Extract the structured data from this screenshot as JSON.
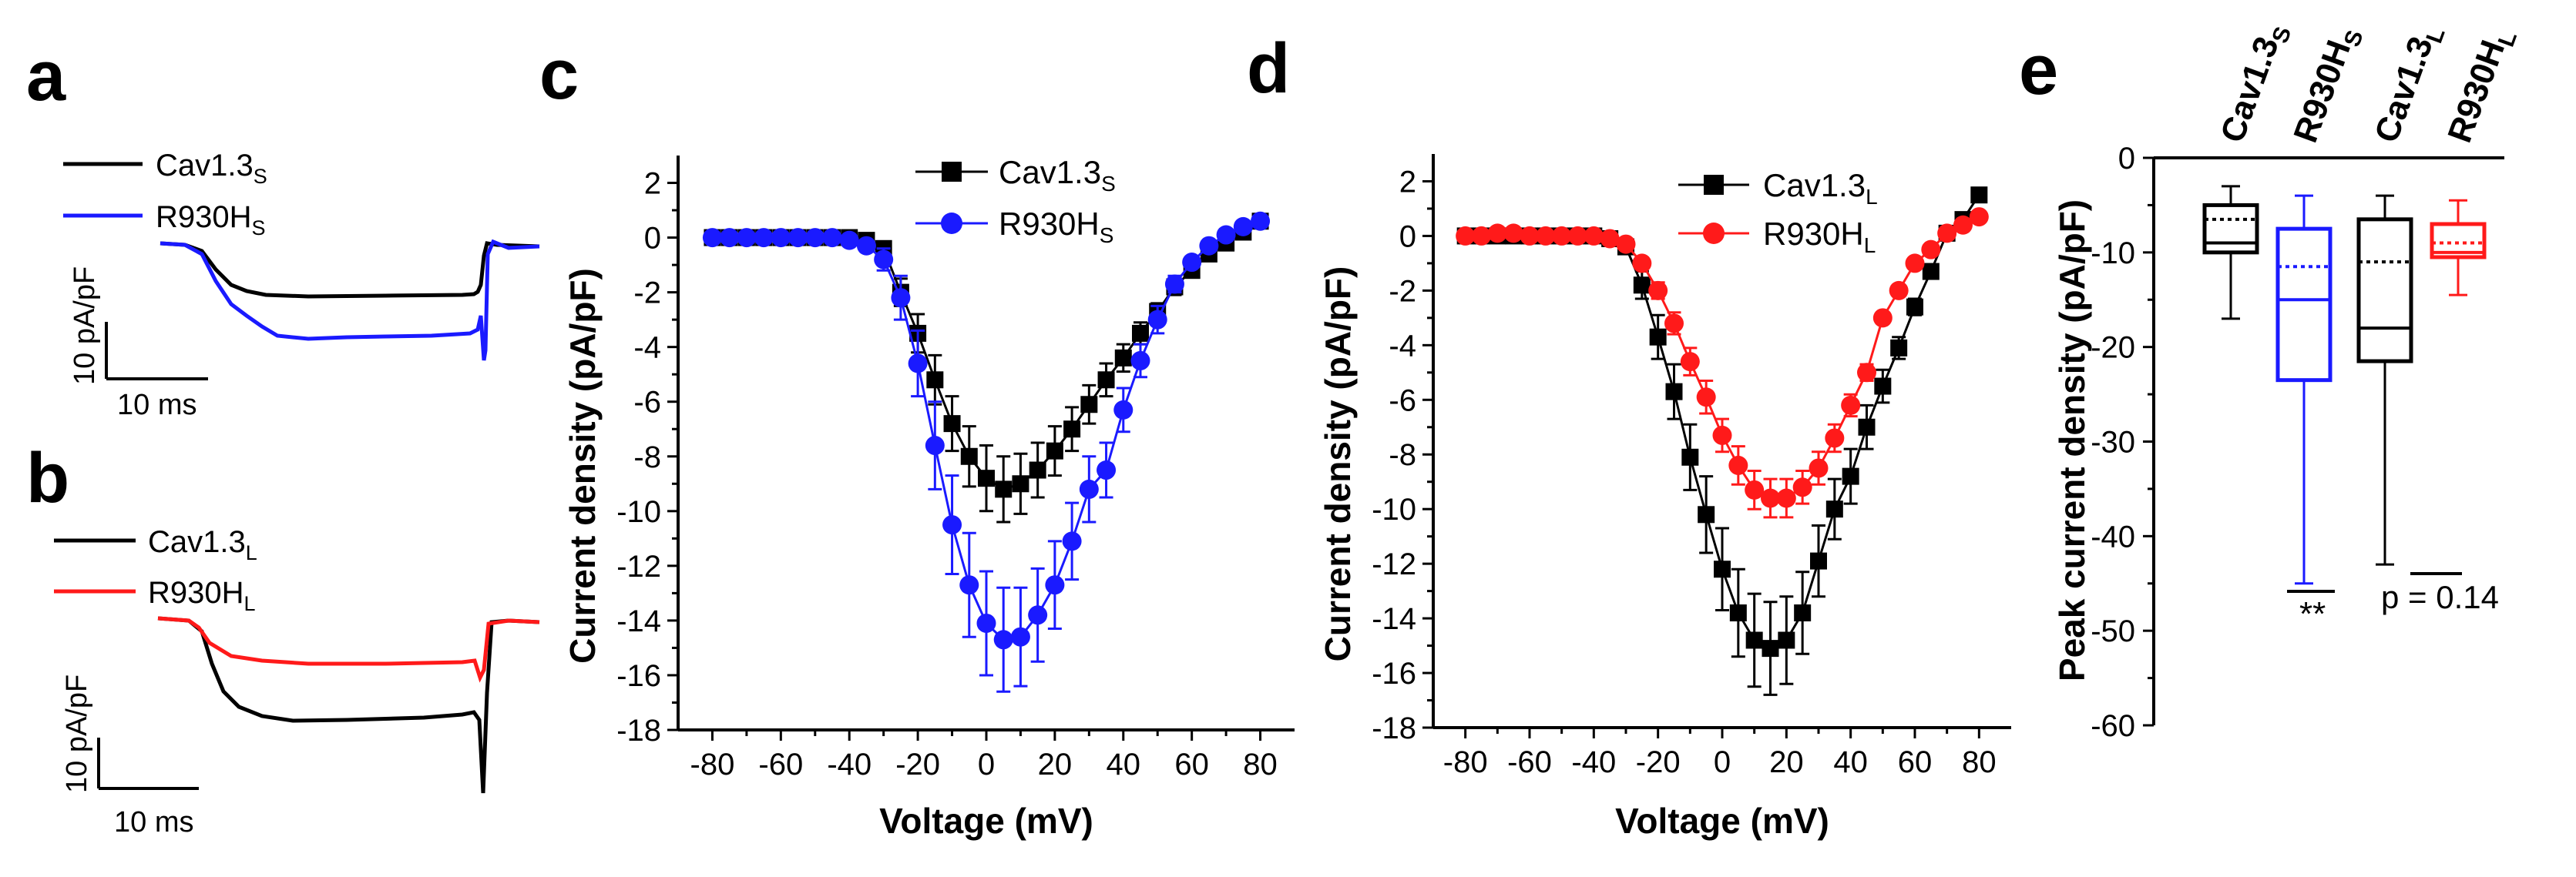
{
  "colors": {
    "wt": "#000000",
    "mut_s": "#1a1aff",
    "mut_l": "#ff1a1a"
  },
  "panels": {
    "a": {
      "letter": "a",
      "legend": [
        {
          "base": "Cav1.3",
          "sub": "S"
        },
        {
          "base": "R930H",
          "sub": "S"
        }
      ],
      "scale_y": "10 pA/pF",
      "scale_x": "10 ms"
    },
    "b": {
      "letter": "b",
      "legend": [
        {
          "base": "Cav1.3",
          "sub": "L"
        },
        {
          "base": "R930H",
          "sub": "L"
        }
      ],
      "scale_y": "10 pA/pF",
      "scale_x": "10 ms"
    },
    "c": {
      "letter": "c"
    },
    "d": {
      "letter": "d"
    },
    "e": {
      "letter": "e"
    }
  },
  "chart_data": [
    {
      "panel": "c",
      "type": "line",
      "xlabel": "Voltage (mV)",
      "ylabel": "Current density (pA/pF)",
      "xlim": [
        -90,
        90
      ],
      "ylim": [
        -18,
        3
      ],
      "xticks": [
        -80,
        -60,
        -40,
        -20,
        0,
        20,
        40,
        60,
        80
      ],
      "yticks": [
        -18,
        -16,
        -14,
        -12,
        -10,
        -8,
        -6,
        -4,
        -2,
        0,
        2
      ],
      "legend_position": "top-right",
      "series": [
        {
          "name": "Cav1.3",
          "sub": "S",
          "marker": "square",
          "color": "#000000",
          "x": [
            -80,
            -75,
            -70,
            -65,
            -60,
            -55,
            -50,
            -45,
            -40,
            -35,
            -30,
            -25,
            -20,
            -15,
            -10,
            -5,
            0,
            5,
            10,
            15,
            20,
            25,
            30,
            35,
            40,
            45,
            50,
            55,
            60,
            65,
            70,
            75,
            80
          ],
          "y": [
            0,
            0,
            0,
            0,
            0,
            0,
            0,
            0,
            0,
            -0.1,
            -0.4,
            -2.0,
            -3.5,
            -5.2,
            -6.8,
            -8.0,
            -8.8,
            -9.2,
            -9.0,
            -8.5,
            -7.8,
            -7.0,
            -6.1,
            -5.2,
            -4.4,
            -3.5,
            -2.7,
            -1.8,
            -1.2,
            -0.6,
            -0.2,
            0.2,
            0.6
          ],
          "err": [
            0,
            0,
            0,
            0,
            0,
            0,
            0,
            0,
            0,
            0.1,
            0.2,
            0.5,
            0.7,
            0.9,
            1.0,
            1.1,
            1.2,
            1.2,
            1.1,
            1.0,
            0.9,
            0.8,
            0.7,
            0.6,
            0.5,
            0.4,
            0.3,
            0.3,
            0.2,
            0.2,
            0.1,
            0.1,
            0.1
          ]
        },
        {
          "name": "R930H",
          "sub": "S",
          "marker": "circle",
          "color": "#1a1aff",
          "x": [
            -80,
            -75,
            -70,
            -65,
            -60,
            -55,
            -50,
            -45,
            -40,
            -35,
            -30,
            -25,
            -20,
            -15,
            -10,
            -5,
            0,
            5,
            10,
            15,
            20,
            25,
            30,
            35,
            40,
            45,
            50,
            55,
            60,
            65,
            70,
            75,
            80
          ],
          "y": [
            0,
            0,
            0,
            0,
            0,
            0,
            0,
            0,
            -0.1,
            -0.3,
            -0.8,
            -2.2,
            -4.6,
            -7.6,
            -10.5,
            -12.7,
            -14.1,
            -14.7,
            -14.6,
            -13.8,
            -12.7,
            -11.1,
            -9.2,
            -8.5,
            -6.3,
            -4.5,
            -3.0,
            -1.7,
            -0.9,
            -0.3,
            0.1,
            0.4,
            0.6
          ],
          "err": [
            0,
            0,
            0,
            0,
            0,
            0,
            0,
            0,
            0.1,
            0.2,
            0.4,
            0.8,
            1.2,
            1.6,
            1.8,
            1.9,
            1.9,
            1.9,
            1.8,
            1.7,
            1.6,
            1.4,
            1.2,
            1.0,
            0.8,
            0.6,
            0.5,
            0.3,
            0.2,
            0.1,
            0.1,
            0.1,
            0.1
          ]
        }
      ]
    },
    {
      "panel": "d",
      "type": "line",
      "xlabel": "Voltage (mV)",
      "ylabel": "Current density  (pA/pF)",
      "xlim": [
        -90,
        90
      ],
      "ylim": [
        -18,
        3
      ],
      "xticks": [
        -80,
        -60,
        -40,
        -20,
        0,
        20,
        40,
        60,
        80
      ],
      "yticks": [
        -18,
        -16,
        -14,
        -12,
        -10,
        -8,
        -6,
        -4,
        -2,
        0,
        2
      ],
      "legend_position": "top-right",
      "series": [
        {
          "name": "Cav1.3",
          "sub": "L",
          "marker": "square",
          "color": "#000000",
          "x": [
            -80,
            -75,
            -70,
            -65,
            -60,
            -55,
            -50,
            -45,
            -40,
            -35,
            -30,
            -25,
            -20,
            -15,
            -10,
            -5,
            0,
            5,
            10,
            15,
            20,
            25,
            30,
            35,
            40,
            45,
            50,
            55,
            60,
            65,
            70,
            75,
            80
          ],
          "y": [
            0,
            0,
            0,
            0,
            0,
            0,
            0,
            0,
            0,
            -0.1,
            -0.4,
            -1.8,
            -3.7,
            -5.7,
            -8.1,
            -10.2,
            -12.2,
            -13.8,
            -14.8,
            -15.1,
            -14.8,
            -13.8,
            -11.9,
            -10.0,
            -8.8,
            -7.0,
            -5.5,
            -4.1,
            -2.6,
            -1.3,
            0.1,
            0.6,
            1.5
          ],
          "err": [
            0,
            0,
            0,
            0,
            0,
            0,
            0,
            0,
            0,
            0.1,
            0.2,
            0.5,
            0.8,
            1.0,
            1.2,
            1.4,
            1.5,
            1.6,
            1.7,
            1.7,
            1.6,
            1.5,
            1.3,
            1.1,
            1.0,
            0.8,
            0.6,
            0.4,
            0.3,
            0.2,
            0.1,
            0.2,
            0.2
          ]
        },
        {
          "name": "R930H",
          "sub": "L",
          "marker": "circle",
          "color": "#ff1a1a",
          "x": [
            -80,
            -75,
            -70,
            -65,
            -60,
            -55,
            -50,
            -45,
            -40,
            -35,
            -30,
            -25,
            -20,
            -15,
            -10,
            -5,
            0,
            5,
            10,
            15,
            20,
            25,
            30,
            35,
            40,
            45,
            50,
            55,
            60,
            65,
            70,
            75,
            80
          ],
          "y": [
            0,
            0,
            0.1,
            0.1,
            0,
            0,
            0,
            0,
            0,
            -0.1,
            -0.3,
            -1.0,
            -2.0,
            -3.2,
            -4.6,
            -5.9,
            -7.3,
            -8.4,
            -9.3,
            -9.6,
            -9.6,
            -9.2,
            -8.5,
            -7.4,
            -6.2,
            -5.0,
            -3.0,
            -2.0,
            -1.0,
            -0.5,
            0.1,
            0.4,
            0.7
          ],
          "err": [
            0,
            0,
            0,
            0,
            0,
            0,
            0,
            0,
            0,
            0.1,
            0.1,
            0.2,
            0.3,
            0.4,
            0.5,
            0.6,
            0.6,
            0.7,
            0.7,
            0.7,
            0.7,
            0.6,
            0.6,
            0.5,
            0.4,
            0.3,
            0.2,
            0.2,
            0.1,
            0.1,
            0.1,
            0.1,
            0.1
          ]
        }
      ]
    },
    {
      "panel": "e",
      "type": "box",
      "ylabel": "Peak current density (pA/pF)",
      "ylim": [
        -60,
        0
      ],
      "yticks": [
        0,
        -10,
        -20,
        -30,
        -40,
        -50,
        -60
      ],
      "categories": [
        {
          "base": "Cav1.3",
          "sub": "S",
          "color": "#000000",
          "whisker_max": -3,
          "q3": -5,
          "median": -9,
          "mean": -6.5,
          "q1": -10,
          "whisker_min": -17
        },
        {
          "base": "R930H",
          "sub": "S",
          "color": "#1a1aff",
          "whisker_max": -4,
          "q3": -7.5,
          "median": -15,
          "mean": -11.5,
          "q1": -23.5,
          "whisker_min": -45
        },
        {
          "base": "Cav1.3",
          "sub": "L",
          "color": "#000000",
          "whisker_max": -4,
          "q3": -6.5,
          "median": -18,
          "mean": -11,
          "q1": -21.5,
          "whisker_min": -43
        },
        {
          "base": "R930H",
          "sub": "L",
          "color": "#ff1a1a",
          "whisker_max": -4.5,
          "q3": -7,
          "median": -10,
          "mean": -9,
          "q1": -10.5,
          "whisker_min": -14.5
        }
      ],
      "annotations": [
        {
          "text": "**",
          "between": [
            0,
            1
          ]
        },
        {
          "text": "p = 0.14",
          "between": [
            2,
            3
          ]
        }
      ]
    }
  ]
}
